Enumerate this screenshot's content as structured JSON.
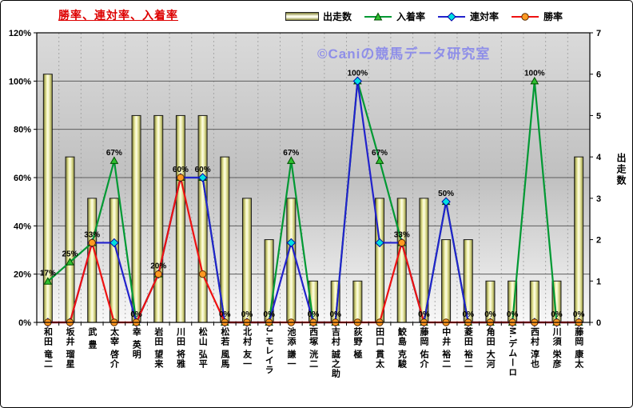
{
  "title": "勝率、連対率、入着率",
  "watermark": "©Caniの競馬データ研究室",
  "colors": {
    "title": "#dd0000",
    "watermark": "#8f8fe8",
    "finish_rate": "#009933",
    "quinella_rate": "#2222cc",
    "win_rate": "#ee1111",
    "bar_face": "#eeee88"
  },
  "legend": {
    "items": [
      {
        "label": "出走数"
      },
      {
        "label": "入着率"
      },
      {
        "label": "連対率"
      },
      {
        "label": "勝率"
      }
    ]
  },
  "chart_data": {
    "type": "bar",
    "subtype": "combo-bar-line",
    "title": "勝率、連対率、入着率",
    "categories": [
      "和田 竜二",
      "坂井 瑠星",
      "武 豊",
      "太宰 啓介",
      "幸 英明",
      "岩田 望来",
      "川田 将雅",
      "松山 弘平",
      "松若 風馬",
      "北村 友一",
      "J.モレイラ",
      "池添 謙一",
      "西塚 洸二",
      "吉村 誠之助",
      "荻野 極",
      "田口 貫太",
      "鮫島 克駿",
      "藤岡 佑介",
      "中井 裕二",
      "菱田 裕二",
      "角田 大河",
      "M.デムーロ",
      "西村 淳也",
      "川須 栄彦",
      "藤岡 康太"
    ],
    "series": [
      {
        "name": "出走数",
        "key": "starts",
        "type": "bar",
        "axis": "right",
        "values": [
          6,
          4,
          3,
          3,
          5,
          5,
          5,
          5,
          4,
          3,
          2,
          3,
          1,
          1,
          1,
          3,
          3,
          3,
          2,
          2,
          1,
          1,
          1,
          1,
          4
        ],
        "color": "#eeee88"
      },
      {
        "name": "入着率",
        "key": "finish-rate",
        "type": "line",
        "marker": "triangle",
        "axis": "left",
        "values_pct": [
          17,
          25,
          33,
          67,
          0,
          20,
          60,
          60,
          0,
          0,
          0,
          67,
          0,
          0,
          100,
          67,
          33,
          0,
          50,
          0,
          0,
          0,
          100,
          0,
          0
        ],
        "color": "#009933",
        "marker_fill": "#2fbf2f",
        "marker_stroke": "#004d00"
      },
      {
        "name": "連対率",
        "key": "quinella-rate",
        "type": "line",
        "marker": "diamond",
        "axis": "left",
        "values_pct": [
          0,
          0,
          33,
          33,
          0,
          20,
          60,
          60,
          0,
          0,
          0,
          33,
          0,
          0,
          100,
          33,
          33,
          0,
          50,
          0,
          0,
          0,
          0,
          0,
          0
        ],
        "color": "#2222cc",
        "marker_fill": "#00e0e0",
        "marker_stroke": "#0000aa"
      },
      {
        "name": "勝率",
        "key": "win-rate",
        "type": "line",
        "marker": "circle",
        "axis": "left",
        "values_pct": [
          0,
          0,
          33,
          0,
          0,
          20,
          60,
          20,
          0,
          0,
          0,
          0,
          0,
          0,
          0,
          0,
          33,
          0,
          0,
          0,
          0,
          0,
          0,
          0,
          0
        ],
        "color": "#ee1111",
        "marker_fill": "#ff9922",
        "marker_stroke": "#5a2d00"
      }
    ],
    "point_labels": [
      "17%",
      "25%",
      "33%",
      "67%",
      "0%",
      "20%",
      "60%",
      "60%",
      "0%",
      "0%",
      "0%",
      "67%",
      "0%",
      "0%",
      "100%",
      "67%",
      "33%",
      "0%",
      "50%",
      "0%",
      "0%",
      "0%",
      "100%",
      "0%",
      "0%"
    ],
    "left_axis": {
      "min": 0,
      "max": 120,
      "step": 20,
      "ticks": [
        "0%",
        "20%",
        "40%",
        "60%",
        "80%",
        "100%",
        "120%"
      ]
    },
    "right_axis": {
      "min": 0,
      "max": 7,
      "step": 1,
      "title": "出走数",
      "ticks": [
        "0",
        "1",
        "2",
        "3",
        "4",
        "5",
        "6",
        "7"
      ]
    },
    "grid": {
      "horizontal": true,
      "vertical_dashed": true
    },
    "legend_position": "top"
  }
}
